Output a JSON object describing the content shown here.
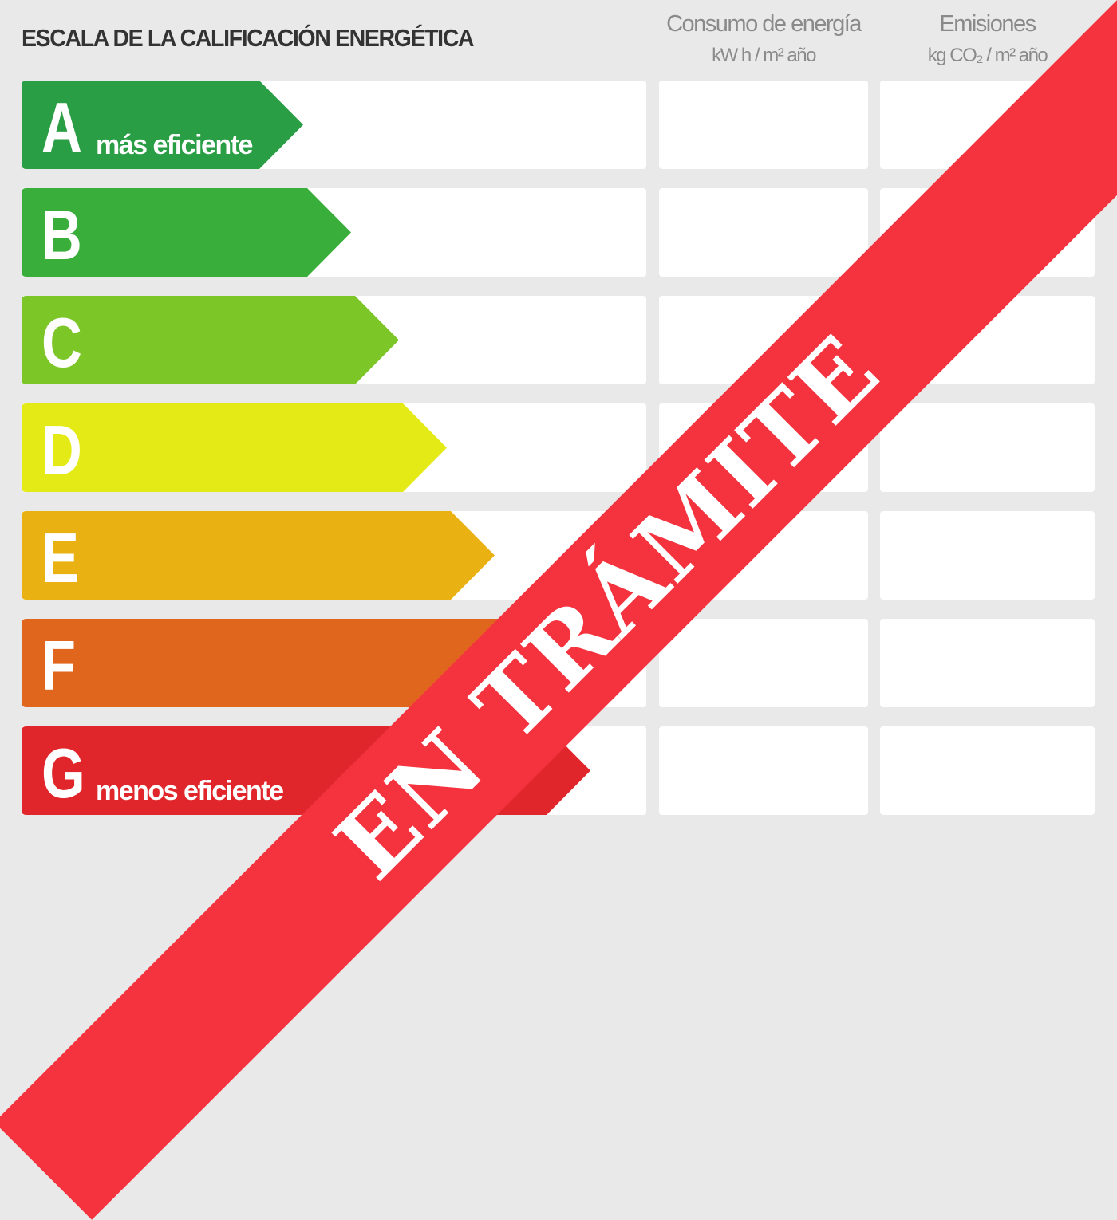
{
  "title": "ESCALA DE LA CALIFICACIÓN ENERGÉTICA",
  "columns": [
    {
      "label": "Consumo de energía",
      "unit": "kW h / m² año"
    },
    {
      "label": "Emisiones",
      "unit": "kg CO₂ / m² año"
    }
  ],
  "ratings": [
    {
      "letter": "A",
      "sub": "más eficiente",
      "color": "#2a9e45"
    },
    {
      "letter": "B",
      "sub": "",
      "color": "#3aae3a"
    },
    {
      "letter": "C",
      "sub": "",
      "color": "#7cc627"
    },
    {
      "letter": "D",
      "sub": "",
      "color": "#e3ea16"
    },
    {
      "letter": "E",
      "sub": "",
      "color": "#eab113"
    },
    {
      "letter": "F",
      "sub": "",
      "color": "#e0661e"
    },
    {
      "letter": "G",
      "sub": "menos eficiente",
      "color": "#e1262b"
    }
  ],
  "banner": {
    "text": "EN TRÁMITE",
    "color": "#f5333f"
  }
}
